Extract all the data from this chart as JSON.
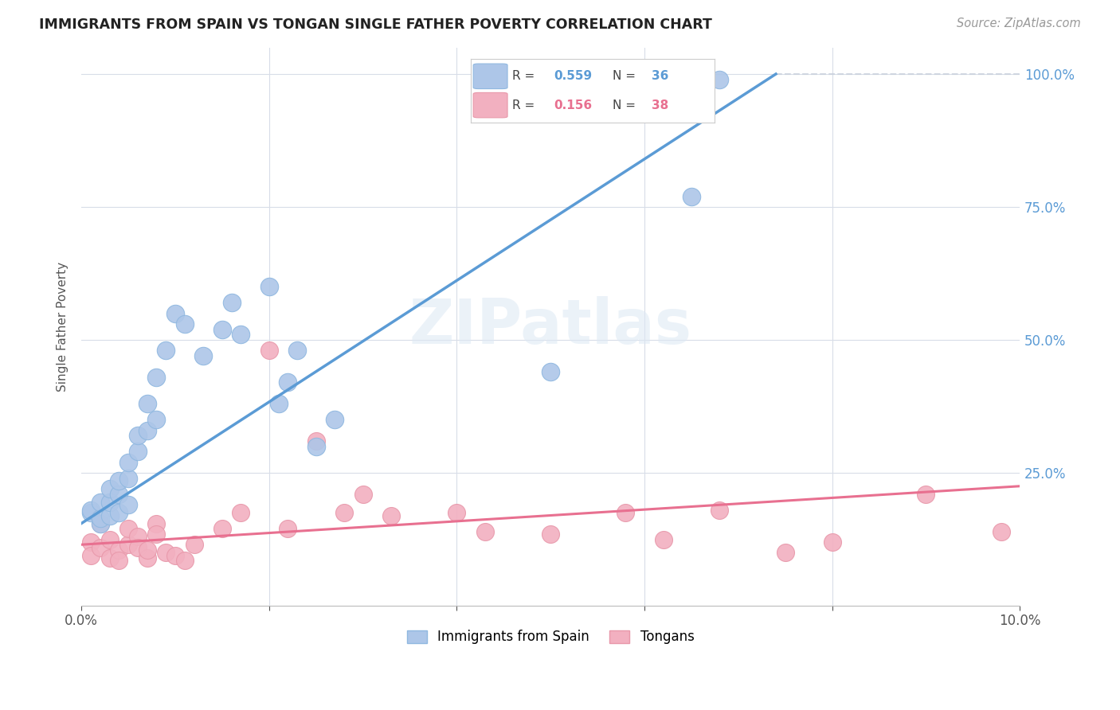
{
  "title": "IMMIGRANTS FROM SPAIN VS TONGAN SINGLE FATHER POVERTY CORRELATION CHART",
  "source": "Source: ZipAtlas.com",
  "ylabel": "Single Father Poverty",
  "watermark": "ZIPatlas",
  "blue_line_color": "#5b9bd5",
  "pink_line_color": "#e87090",
  "dashed_line_color": "#c8d0dc",
  "spain_scatter_color": "#adc6e8",
  "tongan_scatter_color": "#f2b0c0",
  "spain_edge_color": "#90b8e0",
  "tongan_edge_color": "#e898aa",
  "spain_points_x": [
    0.001,
    0.001,
    0.002,
    0.002,
    0.002,
    0.003,
    0.003,
    0.003,
    0.004,
    0.004,
    0.004,
    0.005,
    0.005,
    0.005,
    0.006,
    0.006,
    0.007,
    0.007,
    0.008,
    0.008,
    0.009,
    0.01,
    0.011,
    0.013,
    0.015,
    0.016,
    0.017,
    0.02,
    0.021,
    0.022,
    0.023,
    0.025,
    0.027,
    0.05,
    0.065,
    0.068
  ],
  "spain_points_y": [
    0.175,
    0.18,
    0.155,
    0.165,
    0.195,
    0.17,
    0.195,
    0.22,
    0.175,
    0.21,
    0.235,
    0.19,
    0.24,
    0.27,
    0.29,
    0.32,
    0.33,
    0.38,
    0.35,
    0.43,
    0.48,
    0.55,
    0.53,
    0.47,
    0.52,
    0.57,
    0.51,
    0.6,
    0.38,
    0.42,
    0.48,
    0.3,
    0.35,
    0.44,
    0.77,
    0.99
  ],
  "tongan_points_x": [
    0.001,
    0.001,
    0.002,
    0.002,
    0.003,
    0.003,
    0.004,
    0.004,
    0.005,
    0.005,
    0.006,
    0.006,
    0.007,
    0.007,
    0.008,
    0.008,
    0.009,
    0.01,
    0.011,
    0.012,
    0.015,
    0.017,
    0.02,
    0.022,
    0.025,
    0.028,
    0.03,
    0.033,
    0.04,
    0.043,
    0.05,
    0.058,
    0.062,
    0.068,
    0.075,
    0.08,
    0.09,
    0.098
  ],
  "tongan_points_y": [
    0.12,
    0.095,
    0.155,
    0.11,
    0.125,
    0.09,
    0.105,
    0.085,
    0.115,
    0.145,
    0.13,
    0.11,
    0.09,
    0.105,
    0.155,
    0.135,
    0.1,
    0.095,
    0.085,
    0.115,
    0.145,
    0.175,
    0.48,
    0.145,
    0.31,
    0.175,
    0.21,
    0.17,
    0.175,
    0.14,
    0.135,
    0.175,
    0.125,
    0.18,
    0.1,
    0.12,
    0.21,
    0.14
  ],
  "blue_line_x0": 0.0,
  "blue_line_y0": 0.155,
  "blue_line_x1": 0.074,
  "blue_line_y1": 1.0,
  "pink_line_x0": 0.0,
  "pink_line_y0": 0.115,
  "pink_line_x1": 0.1,
  "pink_line_y1": 0.225,
  "dash_line_x0": 0.067,
  "dash_line_y0": 1.0,
  "dash_line_x1": 0.1,
  "dash_line_y1": 1.0,
  "xmin": 0.0,
  "xmax": 0.1,
  "ymin": 0.0,
  "ymax": 1.05,
  "background_color": "#ffffff",
  "grid_color": "#d8dde8"
}
